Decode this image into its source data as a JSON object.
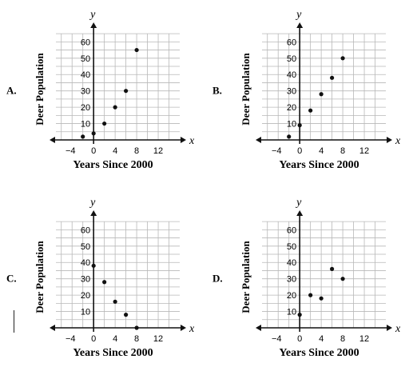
{
  "chart_data": [
    {
      "type": "scatter",
      "option": "A.",
      "xlabel": "Years Since 2000",
      "ylabel": "Deer Population",
      "x_axis_name": "x",
      "y_axis_name": "y",
      "xticks": [
        -4,
        0,
        4,
        8,
        12
      ],
      "yticks": [
        10,
        20,
        30,
        40,
        50,
        60
      ],
      "xlim": [
        -7,
        16
      ],
      "ylim": [
        0,
        68
      ],
      "grid": true,
      "x": [
        -2,
        0,
        2,
        4,
        6,
        8
      ],
      "y": [
        2,
        4,
        10,
        20,
        30,
        55
      ]
    },
    {
      "type": "scatter",
      "option": "B.",
      "xlabel": "Years Since 2000",
      "ylabel": "Deer Population",
      "x_axis_name": "x",
      "y_axis_name": "y",
      "xticks": [
        -4,
        0,
        4,
        8,
        12
      ],
      "yticks": [
        10,
        20,
        30,
        40,
        50,
        60
      ],
      "xlim": [
        -7,
        16
      ],
      "ylim": [
        0,
        68
      ],
      "grid": true,
      "x": [
        -2,
        0,
        2,
        4,
        6,
        8
      ],
      "y": [
        2,
        9,
        18,
        28,
        38,
        50
      ]
    },
    {
      "type": "scatter",
      "option": "C.",
      "xlabel": "Years Since 2000",
      "ylabel": "Deer Population",
      "x_axis_name": "x",
      "y_axis_name": "y",
      "xticks": [
        -4,
        0,
        4,
        8,
        12
      ],
      "yticks": [
        10,
        20,
        30,
        40,
        50,
        60
      ],
      "xlim": [
        -7,
        16
      ],
      "ylim": [
        0,
        68
      ],
      "grid": true,
      "x": [
        0,
        2,
        4,
        6,
        8
      ],
      "y": [
        38,
        28,
        16,
        8,
        0
      ]
    },
    {
      "type": "scatter",
      "option": "D.",
      "xlabel": "Years Since 2000",
      "ylabel": "Deer Population",
      "x_axis_name": "x",
      "y_axis_name": "y",
      "xticks": [
        -4,
        0,
        4,
        8,
        12
      ],
      "yticks": [
        10,
        20,
        30,
        40,
        50,
        60
      ],
      "ytick_labels": [
        "10",
        "20",
        "30",
        "40",
        "50",
        "60"
      ],
      "xlim": [
        -7,
        16
      ],
      "ylim": [
        0,
        68
      ],
      "grid": true,
      "x": [
        0,
        2,
        4,
        6,
        8
      ],
      "y": [
        8,
        20,
        18,
        36,
        30
      ]
    }
  ]
}
